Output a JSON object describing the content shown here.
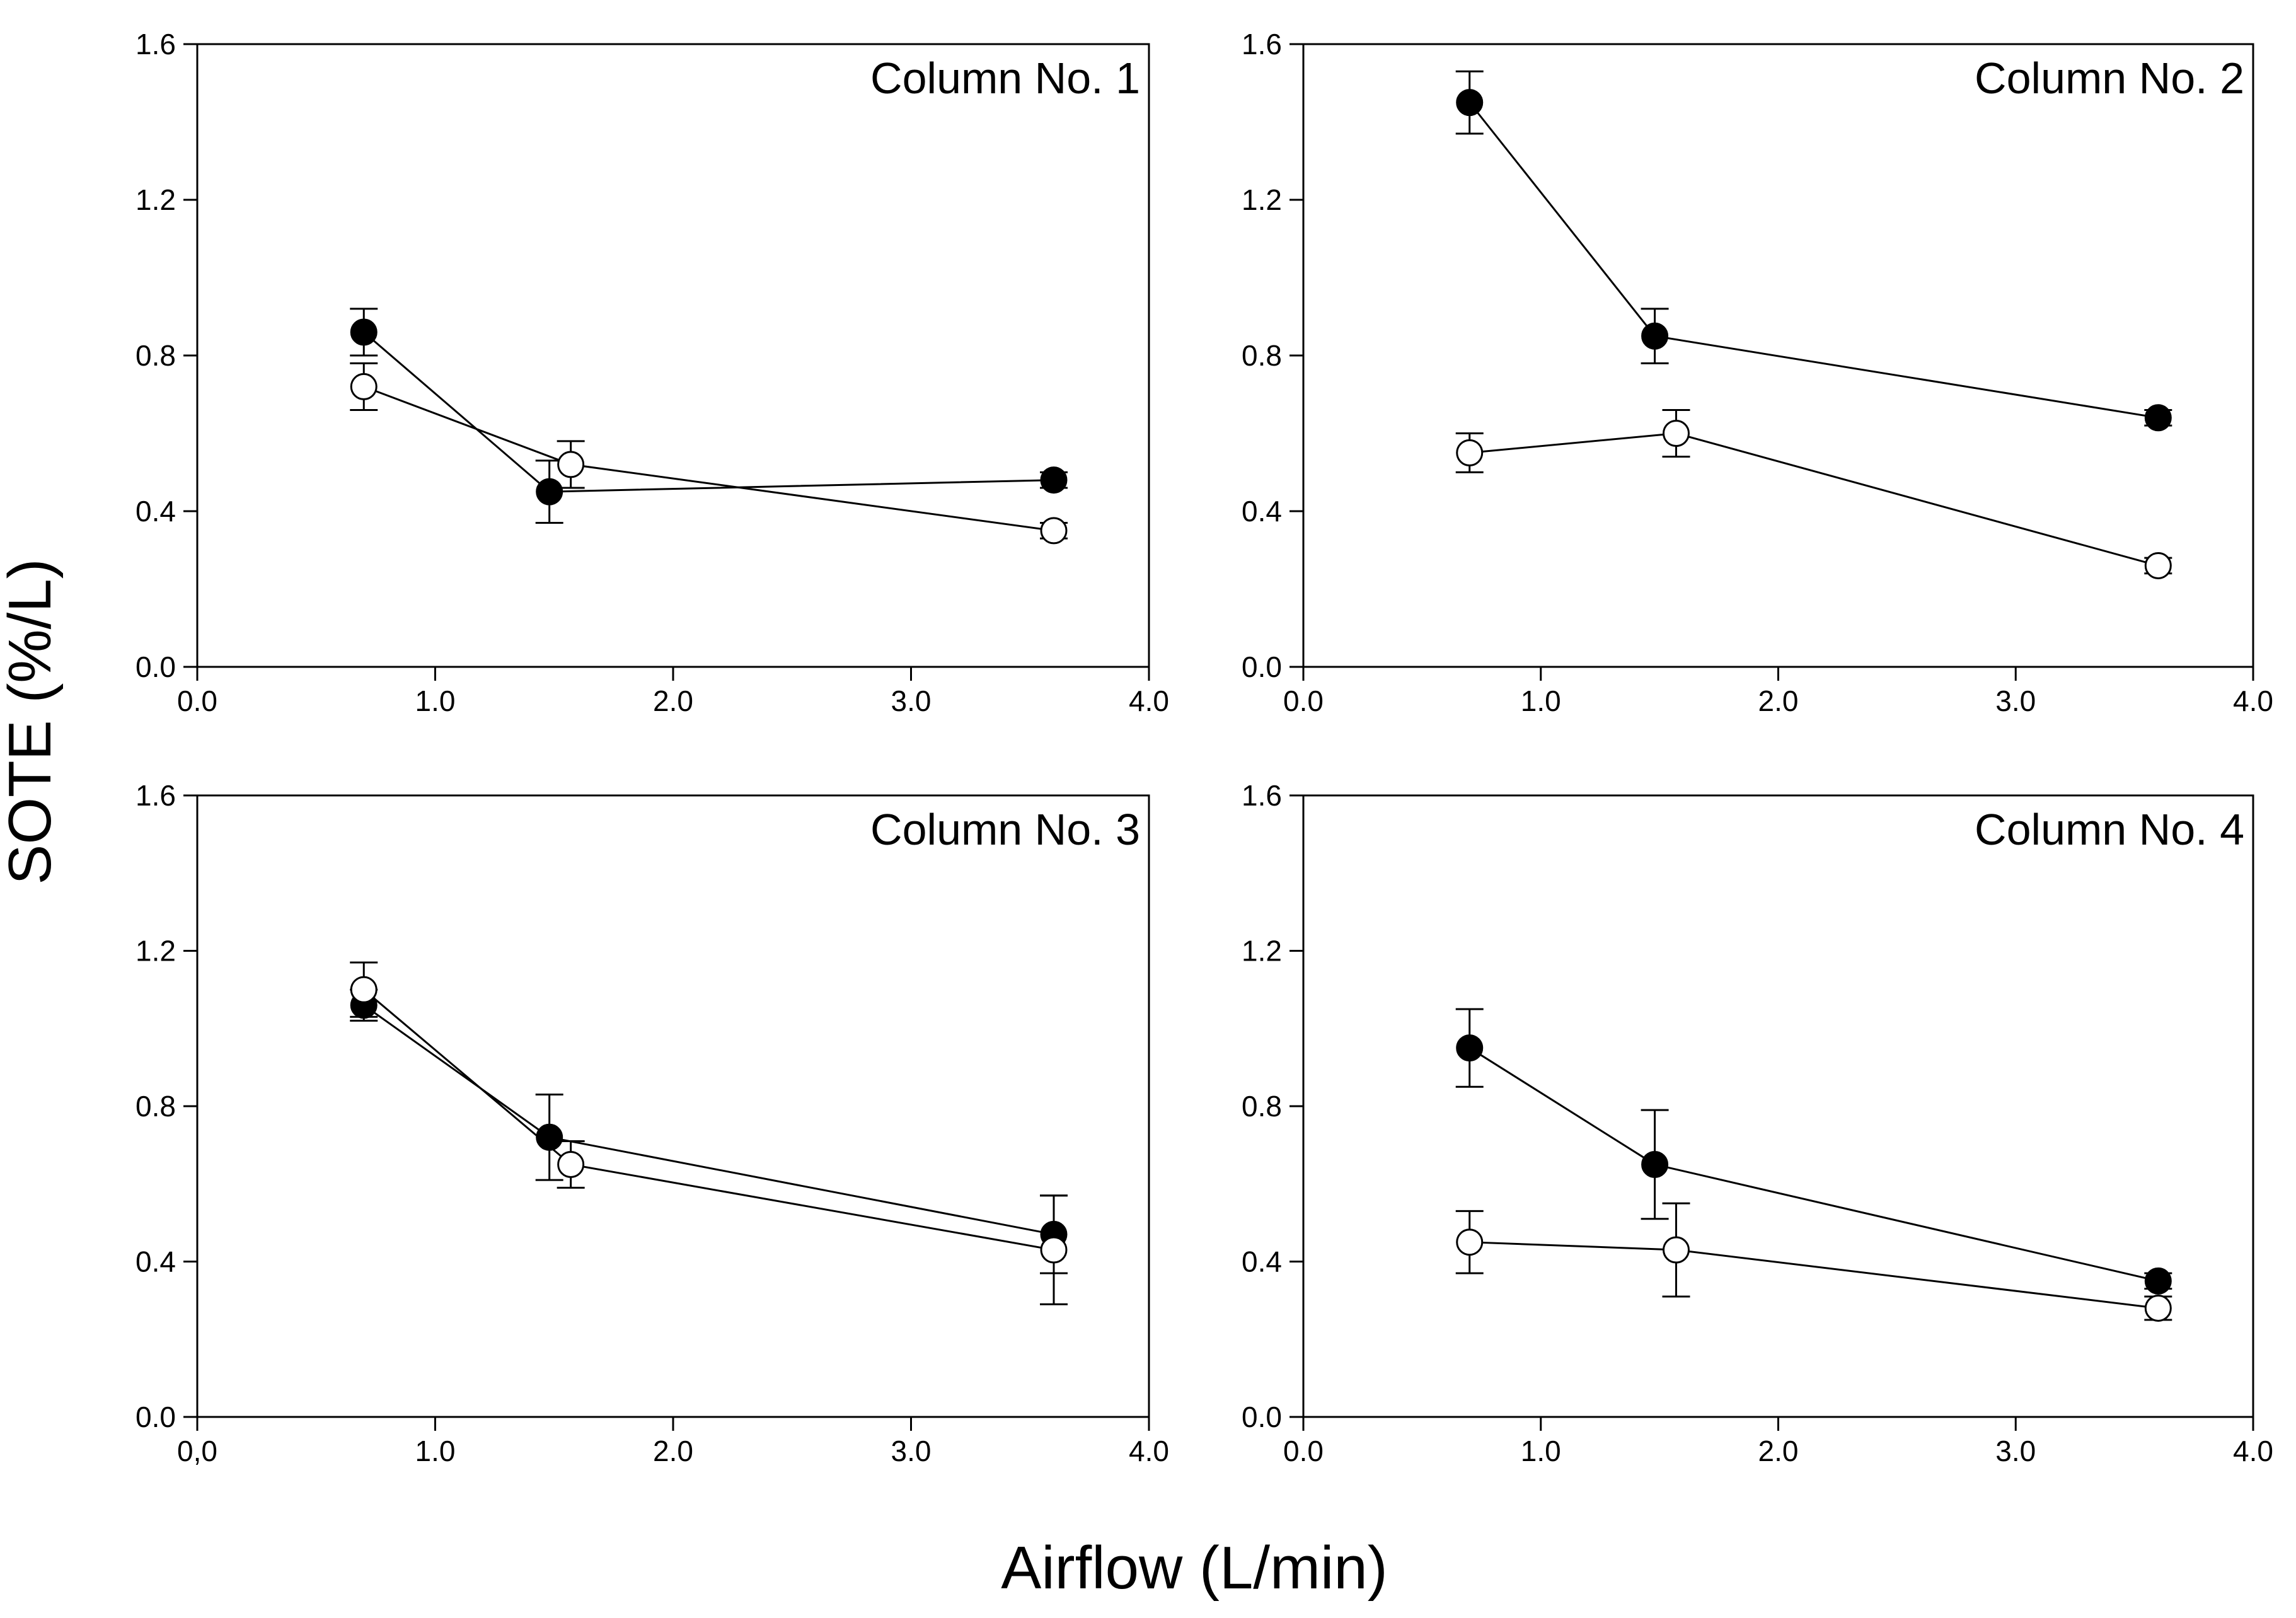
{
  "chart_data": [
    {
      "type": "line",
      "title": "Column No. 1",
      "xlim": [
        0,
        4
      ],
      "ylim": [
        0,
        1.6
      ],
      "xticks": [
        "0.0",
        "1.0",
        "2.0",
        "3.0",
        "4.0"
      ],
      "yticks": [
        "0.0",
        "0.4",
        "0.8",
        "1.2",
        "1.6"
      ],
      "series": [
        {
          "name": "filled",
          "marker": "filled-circle",
          "x": [
            0.7,
            1.48,
            3.6
          ],
          "y": [
            0.86,
            0.45,
            0.48
          ],
          "err": [
            0.06,
            0.08,
            0.02
          ]
        },
        {
          "name": "open",
          "marker": "open-circle",
          "x": [
            0.7,
            1.57,
            3.6
          ],
          "y": [
            0.72,
            0.52,
            0.35
          ],
          "err": [
            0.06,
            0.06,
            0.02
          ]
        }
      ]
    },
    {
      "type": "line",
      "title": "Column No. 2",
      "xlim": [
        0,
        4
      ],
      "ylim": [
        0,
        1.6
      ],
      "xticks": [
        "0.0",
        "1.0",
        "2.0",
        "3.0",
        "4.0"
      ],
      "yticks": [
        "0.0",
        "0.4",
        "0.8",
        "1.2",
        "1.6"
      ],
      "series": [
        {
          "name": "filled",
          "marker": "filled-circle",
          "x": [
            0.7,
            1.48,
            3.6
          ],
          "y": [
            1.45,
            0.85,
            0.64
          ],
          "err": [
            0.08,
            0.07,
            0.02
          ]
        },
        {
          "name": "open",
          "marker": "open-circle",
          "x": [
            0.7,
            1.57,
            3.6
          ],
          "y": [
            0.55,
            0.6,
            0.26
          ],
          "err": [
            0.05,
            0.06,
            0.02
          ]
        }
      ]
    },
    {
      "type": "line",
      "title": "Column No. 3",
      "xlim": [
        0,
        4
      ],
      "ylim": [
        0,
        1.6
      ],
      "xticks": [
        "0,0",
        "1.0",
        "2.0",
        "3.0",
        "4.0"
      ],
      "yticks": [
        "0.0",
        "0.4",
        "0.8",
        "1.2",
        "1.6"
      ],
      "series": [
        {
          "name": "filled",
          "marker": "filled-circle",
          "x": [
            0.7,
            1.48,
            3.6
          ],
          "y": [
            1.06,
            0.72,
            0.47
          ],
          "err": [
            0.04,
            0.11,
            0.1
          ]
        },
        {
          "name": "open",
          "marker": "open-circle",
          "x": [
            0.7,
            1.57,
            3.6
          ],
          "y": [
            1.1,
            0.65,
            0.43
          ],
          "err": [
            0.07,
            0.06,
            0.14
          ]
        }
      ]
    },
    {
      "type": "line",
      "title": "Column No. 4",
      "xlim": [
        0,
        4
      ],
      "ylim": [
        0,
        1.6
      ],
      "xticks": [
        "0.0",
        "1.0",
        "2.0",
        "3.0",
        "4.0"
      ],
      "yticks": [
        "0.0",
        "0.4",
        "0.8",
        "1.2",
        "1.6"
      ],
      "series": [
        {
          "name": "filled",
          "marker": "filled-circle",
          "x": [
            0.7,
            1.48,
            3.6
          ],
          "y": [
            0.95,
            0.65,
            0.35
          ],
          "err": [
            0.1,
            0.14,
            0.02
          ]
        },
        {
          "name": "open",
          "marker": "open-circle",
          "x": [
            0.7,
            1.57,
            3.6
          ],
          "y": [
            0.45,
            0.43,
            0.28
          ],
          "err": [
            0.08,
            0.12,
            0.03
          ]
        }
      ]
    }
  ],
  "axes": {
    "xlabel": "Airflow (L/min)",
    "ylabel": "SOTE (%/L)"
  }
}
